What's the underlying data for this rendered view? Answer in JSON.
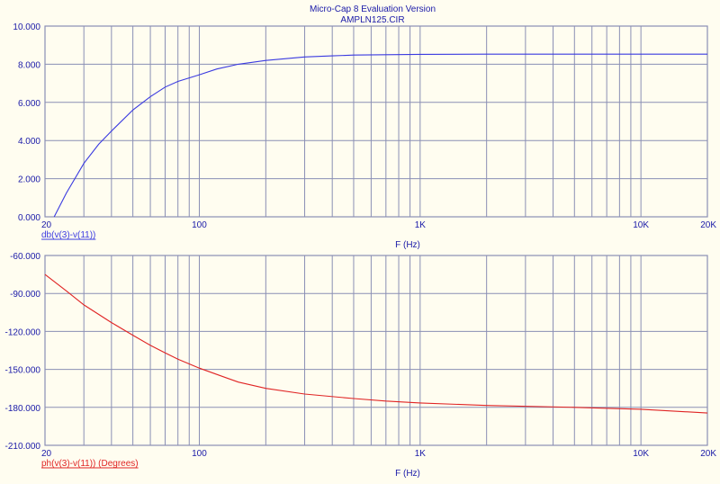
{
  "window": {
    "title": "Micro-Cap 8 Evaluation Version",
    "file": "AMPLN125.CIR",
    "background_color": "#fffdf0"
  },
  "colors": {
    "grid": "#8a8fb4",
    "frame": "#8a8fb4",
    "title_text": "#1a1aa8",
    "axis_text": "#1a1aa8"
  },
  "chart_data": [
    {
      "type": "line",
      "xscale": "log",
      "xlim": [
        20,
        20000
      ],
      "ylim": [
        0,
        10
      ],
      "xticks": [
        {
          "value": 20,
          "label": "20"
        },
        {
          "value": 100,
          "label": "100"
        },
        {
          "value": 1000,
          "label": "1K"
        },
        {
          "value": 10000,
          "label": "10K"
        },
        {
          "value": 20000,
          "label": "20K"
        }
      ],
      "yticks": [
        {
          "value": 0,
          "label": "0.000"
        },
        {
          "value": 2,
          "label": "2.000"
        },
        {
          "value": 4,
          "label": "4.000"
        },
        {
          "value": 6,
          "label": "6.000"
        },
        {
          "value": 8,
          "label": "8.000"
        },
        {
          "value": 10,
          "label": "10.000"
        }
      ],
      "xlabel": "F (Hz)",
      "grid": true,
      "series": [
        {
          "name": "db(v(3)-v(11))",
          "color": "#3a3ae0",
          "x": [
            22,
            25,
            30,
            35,
            40,
            50,
            60,
            70,
            80,
            100,
            120,
            150,
            200,
            300,
            400,
            500,
            700,
            1000,
            2000,
            5000,
            10000,
            20000
          ],
          "y": [
            0.0,
            1.25,
            2.8,
            3.8,
            4.5,
            5.6,
            6.3,
            6.8,
            7.1,
            7.45,
            7.75,
            8.0,
            8.2,
            8.38,
            8.44,
            8.48,
            8.5,
            8.52,
            8.53,
            8.53,
            8.53,
            8.53
          ]
        }
      ]
    },
    {
      "type": "line",
      "xscale": "log",
      "xlim": [
        20,
        20000
      ],
      "ylim": [
        -210,
        -60
      ],
      "xticks": [
        {
          "value": 20,
          "label": "20"
        },
        {
          "value": 100,
          "label": "100"
        },
        {
          "value": 1000,
          "label": "1K"
        },
        {
          "value": 10000,
          "label": "10K"
        },
        {
          "value": 20000,
          "label": "20K"
        }
      ],
      "yticks": [
        {
          "value": -210,
          "label": "-210.000"
        },
        {
          "value": -180,
          "label": "-180.000"
        },
        {
          "value": -150,
          "label": "-150.000"
        },
        {
          "value": -120,
          "label": "-120.000"
        },
        {
          "value": -90,
          "label": "-90.000"
        },
        {
          "value": -60,
          "label": "-60.000"
        }
      ],
      "xlabel": "F (Hz)",
      "grid": true,
      "series": [
        {
          "name": "ph(v(3)-v(11)) (Degrees)",
          "color": "#e02424",
          "x": [
            20,
            25,
            30,
            40,
            50,
            60,
            70,
            80,
            100,
            120,
            150,
            200,
            300,
            500,
            700,
            1000,
            2000,
            5000,
            10000,
            20000
          ],
          "y": [
            -75,
            -88,
            -99,
            -113,
            -123,
            -131,
            -137,
            -142,
            -149,
            -154,
            -160,
            -165,
            -169.5,
            -173,
            -175,
            -176.5,
            -178.5,
            -180,
            -181.5,
            -184.5
          ]
        }
      ]
    }
  ]
}
